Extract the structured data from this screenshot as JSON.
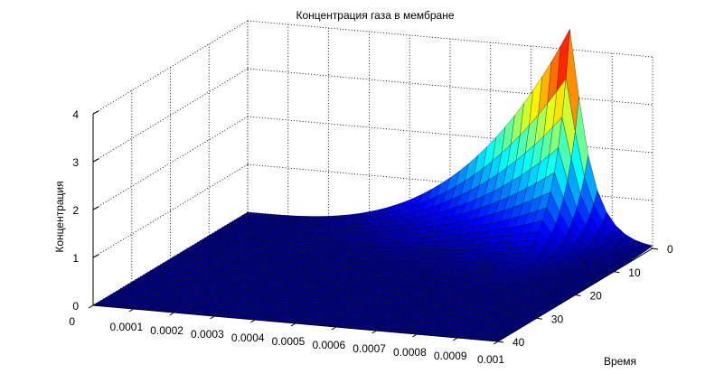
{
  "chart_data": {
    "type": "surface",
    "title": "Концентрация газа в мембране",
    "xlabel": "",
    "ylabel": "Время",
    "zlabel": "Концентрация",
    "x_ticks": [
      "0",
      "0.0001",
      "0.0002",
      "0.0003",
      "0.0004",
      "0.0005",
      "0.0006",
      "0.0007",
      "0.0008",
      "0.0009",
      "0.001"
    ],
    "y_ticks": [
      "0",
      "10",
      "20",
      "30",
      "40"
    ],
    "z_ticks": [
      "0",
      "1",
      "2",
      "3",
      "4"
    ],
    "xlim": [
      0,
      0.001
    ],
    "ylim": [
      0,
      40
    ],
    "zlim": [
      0,
      4
    ],
    "grid": true,
    "colormap": "jet",
    "peak": {
      "x": 0.0008,
      "y": 0,
      "z": 4.5
    },
    "surface_note": "Concentration peaks near x=0.0008 at time 0 and decays quickly with time"
  }
}
